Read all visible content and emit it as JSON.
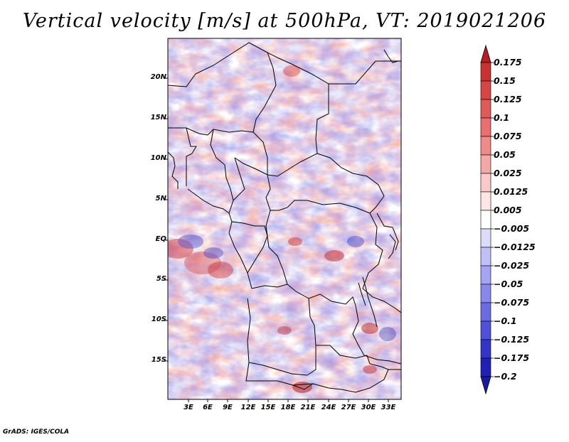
{
  "title": "Vertical velocity [m/s] at 500hPa, VT: 2019021206",
  "map": {
    "region": "Central Africa",
    "lat_labels": [
      "20N",
      "15N",
      "10N",
      "5N",
      "EQ",
      "5S",
      "10S",
      "15S"
    ],
    "lon_labels": [
      "3E",
      "6E",
      "9E",
      "12E",
      "15E",
      "18E",
      "21E",
      "24E",
      "27E",
      "30E",
      "33E"
    ],
    "frame_color": "#000000",
    "field_colors": {
      "neutral": "#ffffff",
      "updraft": "#e8786c",
      "downdraft": "#8a8ae6"
    }
  },
  "colorbar": {
    "labels": [
      "0.175",
      "0.15",
      "0.125",
      "0.1",
      "0.075",
      "0.05",
      "0.025",
      "0.0125",
      "0.005",
      "−0.005",
      "−0.0125",
      "−0.025",
      "−0.05",
      "−0.075",
      "−0.1",
      "−0.125",
      "−0.175",
      "−0.2"
    ],
    "colors": [
      "#b41e1e",
      "#c83232",
      "#d64646",
      "#e05a5a",
      "#e87070",
      "#ee8a88",
      "#f4a8a6",
      "#f9cac8",
      "#fde6e4",
      "#ffffff",
      "#dcdcfa",
      "#c0c0f6",
      "#a4a4f0",
      "#8888ea",
      "#6c6ce2",
      "#5050d8",
      "#3434c8",
      "#2020b4",
      "#14149a"
    ],
    "top_arrow_color": "#b41e1e",
    "bottom_arrow_color": "#1a1aa0"
  },
  "footer": "GrADS: IGES/COLA"
}
